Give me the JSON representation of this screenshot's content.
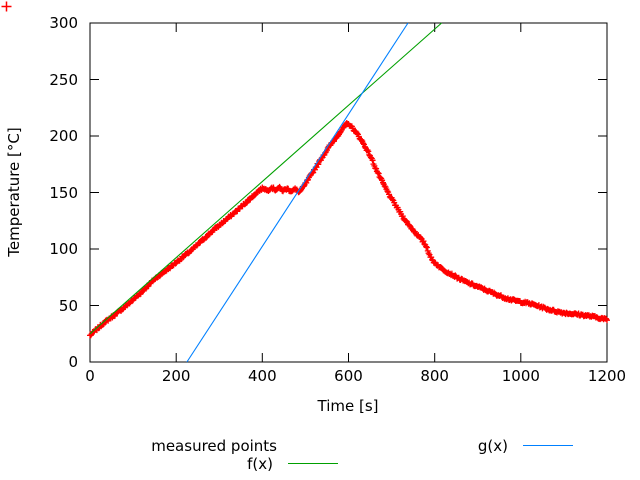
{
  "chart_data": {
    "type": "scatter",
    "title": "",
    "xlabel": "Time [s]",
    "ylabel": "Temperature [°C]",
    "xlim": [
      0,
      1200
    ],
    "ylim": [
      0,
      300
    ],
    "xticks": [
      0,
      200,
      400,
      600,
      800,
      1000,
      1200
    ],
    "yticks": [
      0,
      50,
      100,
      150,
      200,
      250,
      300
    ],
    "grid": false,
    "ticks_mirrored_top_right": true,
    "legend_position": "below",
    "colors": {
      "background": "#ffffff",
      "axis": "#000000",
      "measured": "#ff0000",
      "f": "#00a000",
      "g": "#0080ff"
    },
    "series": [
      {
        "name": "measured points",
        "type": "points",
        "marker": "plus",
        "color": "#ff0000",
        "sampling_interval_s": 2,
        "noise_amplitude_C": 1.0,
        "anchors": [
          [
            0,
            23
          ],
          [
            30,
            33
          ],
          [
            60,
            42
          ],
          [
            90,
            52
          ],
          [
            120,
            62
          ],
          [
            150,
            73
          ],
          [
            180,
            82
          ],
          [
            210,
            92
          ],
          [
            240,
            101
          ],
          [
            270,
            111
          ],
          [
            300,
            121
          ],
          [
            330,
            131
          ],
          [
            360,
            141
          ],
          [
            388,
            150
          ],
          [
            395,
            152
          ],
          [
            403,
            153.5
          ],
          [
            412,
            151
          ],
          [
            421,
            154
          ],
          [
            430,
            152
          ],
          [
            439,
            154
          ],
          [
            448,
            151.5
          ],
          [
            457,
            153.5
          ],
          [
            466,
            151.5
          ],
          [
            476,
            153
          ],
          [
            486,
            150.5
          ],
          [
            496,
            155
          ],
          [
            515,
            166
          ],
          [
            535,
            178
          ],
          [
            555,
            190
          ],
          [
            572,
            199
          ],
          [
            585,
            206
          ],
          [
            596,
            211
          ],
          [
            604,
            210
          ],
          [
            612,
            206
          ],
          [
            622,
            201
          ],
          [
            632,
            195
          ],
          [
            642,
            188
          ],
          [
            652,
            181
          ],
          [
            662,
            172
          ],
          [
            672,
            164
          ],
          [
            682,
            157
          ],
          [
            695,
            148
          ],
          [
            710,
            139
          ],
          [
            725,
            130
          ],
          [
            740,
            122
          ],
          [
            755,
            115
          ],
          [
            768,
            109
          ],
          [
            776,
            105
          ],
          [
            782,
            101
          ],
          [
            788,
            95
          ],
          [
            794,
            90
          ],
          [
            800,
            88
          ],
          [
            812,
            84
          ],
          [
            825,
            81
          ],
          [
            840,
            78
          ],
          [
            858,
            74
          ],
          [
            878,
            70
          ],
          [
            900,
            66
          ],
          [
            925,
            62
          ],
          [
            950,
            58.5
          ],
          [
            975,
            55.5
          ],
          [
            1000,
            53
          ],
          [
            1030,
            50
          ],
          [
            1060,
            46.5
          ],
          [
            1090,
            44.5
          ],
          [
            1120,
            43
          ],
          [
            1150,
            41
          ],
          [
            1175,
            39.5
          ],
          [
            1200,
            38
          ]
        ]
      },
      {
        "name": "f(x)",
        "type": "line",
        "color": "#00a000",
        "approx_slope_C_per_s": 0.337,
        "approx_intercept_C": 25,
        "endpoints": [
          [
            0,
            25
          ],
          [
            816,
            300
          ]
        ]
      },
      {
        "name": "g(x)",
        "type": "line",
        "color": "#0080ff",
        "approx_slope_C_per_s": 0.585,
        "approx_x_intercept_s": 225,
        "endpoints": [
          [
            225,
            0
          ],
          [
            738,
            300
          ]
        ]
      }
    ]
  }
}
